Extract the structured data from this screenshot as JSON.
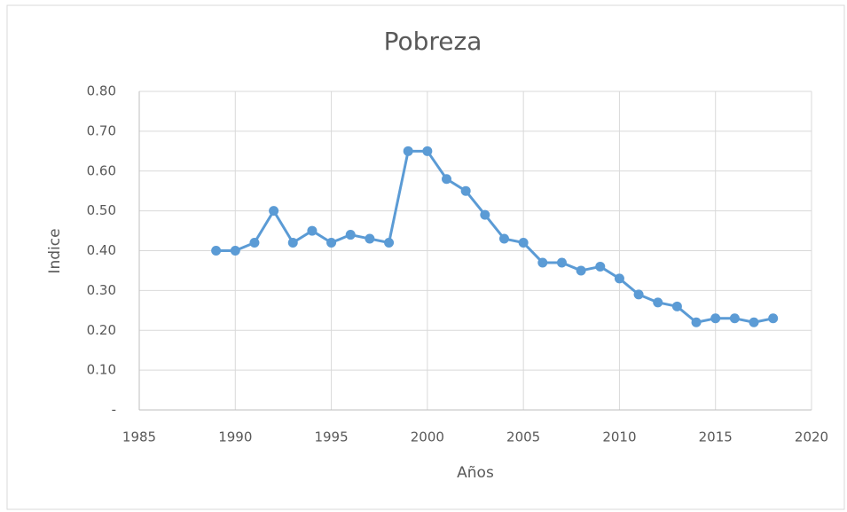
{
  "chart_data": {
    "type": "line",
    "title": "Pobreza",
    "x_label": "Años",
    "y_label": "Indice",
    "x": [
      1989,
      1990,
      1991,
      1992,
      1993,
      1994,
      1995,
      1996,
      1997,
      1998,
      1999,
      2000,
      2001,
      2002,
      2003,
      2004,
      2005,
      2006,
      2007,
      2008,
      2009,
      2010,
      2011,
      2012,
      2013,
      2014,
      2015,
      2016,
      2017,
      2018
    ],
    "series": [
      {
        "name": "Pobreza",
        "color": "#5b9bd5",
        "values": [
          0.4,
          0.4,
          0.42,
          0.5,
          0.42,
          0.45,
          0.42,
          0.44,
          0.43,
          0.42,
          0.65,
          0.65,
          0.58,
          0.55,
          0.49,
          0.43,
          0.42,
          0.37,
          0.37,
          0.35,
          0.36,
          0.33,
          0.29,
          0.27,
          0.26,
          0.22,
          0.23,
          0.23,
          0.22,
          0.23
        ]
      }
    ],
    "xlim": [
      1985,
      2020
    ],
    "xticks": [
      1985,
      1990,
      1995,
      2000,
      2005,
      2010,
      2015,
      2020
    ],
    "ylim": [
      0,
      0.8
    ],
    "yticks": [
      {
        "value": 0,
        "label": "-"
      },
      {
        "value": 0.1,
        "label": "0.10"
      },
      {
        "value": 0.2,
        "label": "0.20"
      },
      {
        "value": 0.3,
        "label": "0.30"
      },
      {
        "value": 0.4,
        "label": "0.40"
      },
      {
        "value": 0.5,
        "label": "0.50"
      },
      {
        "value": 0.6,
        "label": "0.60"
      },
      {
        "value": 0.7,
        "label": "0.70"
      },
      {
        "value": 0.8,
        "label": "0.80"
      }
    ],
    "grid": true
  }
}
